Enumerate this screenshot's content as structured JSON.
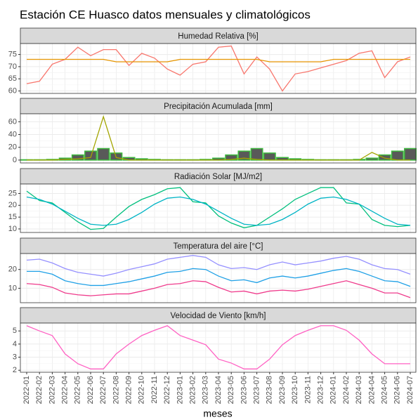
{
  "title": "Estación CE Huasco datos mensuales y climatológicos",
  "x_label": "meses",
  "categories": [
    "2022-01",
    "2022-02",
    "2022-03",
    "2022-04",
    "2022-05",
    "2022-06",
    "2022-07",
    "2022-08",
    "2022-09",
    "2022-10",
    "2022-11",
    "2022-12",
    "2023-01",
    "2023-02",
    "2023-03",
    "2023-04",
    "2023-05",
    "2023-06",
    "2023-07",
    "2023-08",
    "2023-09",
    "2023-10",
    "2023-11",
    "2023-12",
    "2024-01",
    "2024-02",
    "2024-03",
    "2024-04",
    "2024-05",
    "2024-06",
    "2024-07"
  ],
  "chart_data": [
    {
      "type": "line",
      "title": "Humedad Relativa [%]",
      "ylim": [
        59,
        79.5
      ],
      "yticks": [
        60,
        65,
        70,
        75
      ],
      "grid": true,
      "series": [
        {
          "color": "#f8766d",
          "values": [
            63,
            64,
            71,
            73,
            78,
            74.5,
            77,
            77,
            70.5,
            75.5,
            73.5,
            69,
            66.5,
            71,
            72,
            78,
            78.5,
            67,
            74,
            69,
            60,
            67,
            68,
            69.5,
            71,
            72.5,
            75.5,
            76.5,
            65.5,
            72,
            74
          ]
        },
        {
          "color": "#e69500",
          "values": [
            73,
            73,
            73,
            73,
            73,
            73,
            73,
            72,
            72,
            72,
            72,
            72,
            73,
            73,
            73,
            73,
            73,
            73,
            73,
            72,
            72,
            72,
            72,
            72,
            73,
            73,
            73,
            73,
            73,
            73,
            73
          ]
        }
      ]
    },
    {
      "type": "bar_line",
      "title": "Precipitación Acumulada [mm]",
      "ylim": [
        -4.5,
        72.5
      ],
      "yticks": [
        0,
        20,
        40,
        60
      ],
      "grid": true,
      "series": [
        {
          "type": "bar",
          "color": "#595959",
          "stroke": "#3cb83c",
          "values": [
            0.5,
            0.5,
            1,
            3,
            8,
            14,
            18,
            11,
            4,
            2,
            1,
            0.5,
            0.5,
            0.5,
            1,
            3,
            8,
            14,
            18,
            11,
            4,
            2,
            1,
            0.5,
            0.5,
            0.5,
            1,
            3,
            8,
            14,
            18
          ]
        },
        {
          "type": "line",
          "color": "#a3a500",
          "values": [
            0,
            0,
            0,
            1,
            2,
            4,
            68,
            4,
            0,
            0,
            0,
            0,
            0,
            0,
            0,
            0,
            1,
            3,
            1,
            0,
            0,
            0,
            0,
            0,
            0,
            0,
            0,
            12,
            3,
            0,
            0
          ]
        }
      ]
    },
    {
      "type": "line",
      "title": "Radiación Solar [MJ/m2]",
      "ylim": [
        8.5,
        29
      ],
      "yticks": [
        10,
        15,
        20,
        25
      ],
      "grid": true,
      "series": [
        {
          "color": "#00bf7d",
          "values": [
            26,
            22,
            21,
            17,
            13,
            9.8,
            10.2,
            15,
            19.5,
            22.5,
            24.5,
            27,
            27.5,
            21.5,
            21,
            15.5,
            12.5,
            10.5,
            11.5,
            15,
            18.5,
            22.5,
            25,
            27.5,
            27.5,
            21,
            20.5,
            14,
            11.5,
            11,
            11.5
          ]
        },
        {
          "color": "#00b4c5",
          "values": [
            23.5,
            22.5,
            20.5,
            17.5,
            14.5,
            12,
            11.5,
            12,
            14,
            17,
            20.5,
            23,
            23.5,
            22.5,
            20.5,
            17.5,
            14.5,
            12,
            11.5,
            12,
            14,
            17,
            20.5,
            23,
            23.5,
            22.5,
            20.5,
            17.5,
            14.5,
            12,
            11.5
          ]
        }
      ]
    },
    {
      "type": "line",
      "title": "Temperatura del aire [°C]",
      "ylim": [
        2.3,
        28.5
      ],
      "yticks": [
        10,
        20
      ],
      "grid": true,
      "series": [
        {
          "color": "#9590ff",
          "values": [
            25,
            25.5,
            23.5,
            20.5,
            18.5,
            17.5,
            16.5,
            18,
            20,
            21.5,
            23,
            25.5,
            26.5,
            27.5,
            26.5,
            22.5,
            20.5,
            21,
            20,
            22.5,
            24,
            22.5,
            23.5,
            24.5,
            26,
            27,
            25.5,
            22.5,
            20.5,
            20,
            17.5
          ]
        },
        {
          "color": "#1fa0e6",
          "values": [
            19,
            19,
            17.5,
            14,
            12.5,
            11.5,
            11.5,
            12.5,
            13.5,
            15,
            16.5,
            18.5,
            19,
            20.5,
            20,
            16.5,
            14,
            14.5,
            13,
            15.5,
            16.5,
            15.5,
            16.5,
            18,
            19.5,
            20.5,
            19,
            16.5,
            14,
            13.5,
            11
          ]
        },
        {
          "color": "#ef3b8c",
          "values": [
            12.5,
            12,
            10.5,
            7.5,
            6.5,
            6,
            6.5,
            7,
            7,
            8.5,
            10,
            12,
            12.5,
            14,
            13.5,
            10.5,
            8,
            8.5,
            7,
            8.5,
            9,
            8.5,
            9.5,
            11,
            12.5,
            14,
            12,
            10,
            7.5,
            7.5,
            5
          ]
        }
      ]
    },
    {
      "type": "line",
      "title": "Velocidad de Viento [km/h]",
      "ylim": [
        1.85,
        5.6
      ],
      "yticks": [
        2,
        3,
        4,
        5
      ],
      "grid": true,
      "series": [
        {
          "color": "#ff61c3",
          "values": [
            5.4,
            5,
            4.65,
            3.25,
            2.5,
            2.1,
            2.1,
            3.25,
            4,
            4.65,
            5.05,
            5.4,
            4.65,
            4.3,
            3.95,
            2.85,
            2.55,
            2.1,
            2.1,
            2.85,
            3.95,
            4.65,
            5.05,
            5.4,
            5.4,
            5.05,
            4.3,
            3.25,
            2.5,
            2.5,
            2.5
          ]
        }
      ]
    }
  ]
}
